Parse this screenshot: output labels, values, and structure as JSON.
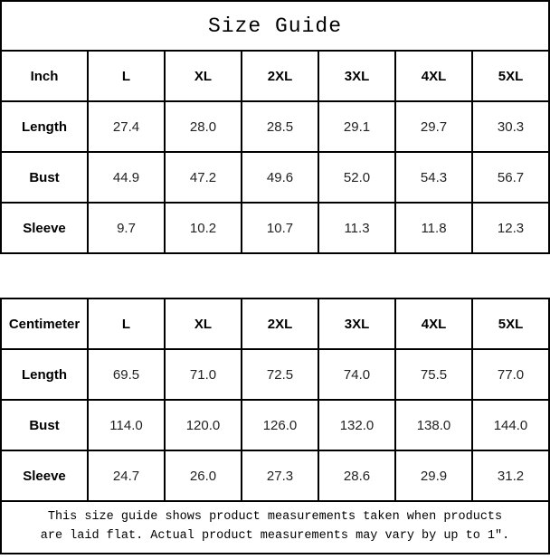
{
  "title": "Size Guide",
  "colors": {
    "border": "#000000",
    "heading_text": "#000000",
    "value_text": "#222222",
    "background": "#ffffff"
  },
  "tables": [
    {
      "unit_label": "Inch",
      "sizes": [
        "L",
        "XL",
        "2XL",
        "3XL",
        "4XL",
        "5XL"
      ],
      "rows": [
        {
          "label": "Length",
          "values": [
            "27.4",
            "28.0",
            "28.5",
            "29.1",
            "29.7",
            "30.3"
          ]
        },
        {
          "label": "Bust",
          "values": [
            "44.9",
            "47.2",
            "49.6",
            "52.0",
            "54.3",
            "56.7"
          ]
        },
        {
          "label": "Sleeve",
          "values": [
            "9.7",
            "10.2",
            "10.7",
            "11.3",
            "11.8",
            "12.3"
          ]
        }
      ]
    },
    {
      "unit_label": "Centimeter",
      "sizes": [
        "L",
        "XL",
        "2XL",
        "3XL",
        "4XL",
        "5XL"
      ],
      "rows": [
        {
          "label": "Length",
          "values": [
            "69.5",
            "71.0",
            "72.5",
            "74.0",
            "75.5",
            "77.0"
          ]
        },
        {
          "label": "Bust",
          "values": [
            "114.0",
            "120.0",
            "126.0",
            "132.0",
            "138.0",
            "144.0"
          ]
        },
        {
          "label": "Sleeve",
          "values": [
            "24.7",
            "26.0",
            "27.3",
            "28.6",
            "29.9",
            "31.2"
          ]
        }
      ]
    }
  ],
  "footer": {
    "line1": "This size guide shows product measurements taken when products",
    "line2": "are laid flat. Actual product measurements may vary by up to 1″."
  }
}
